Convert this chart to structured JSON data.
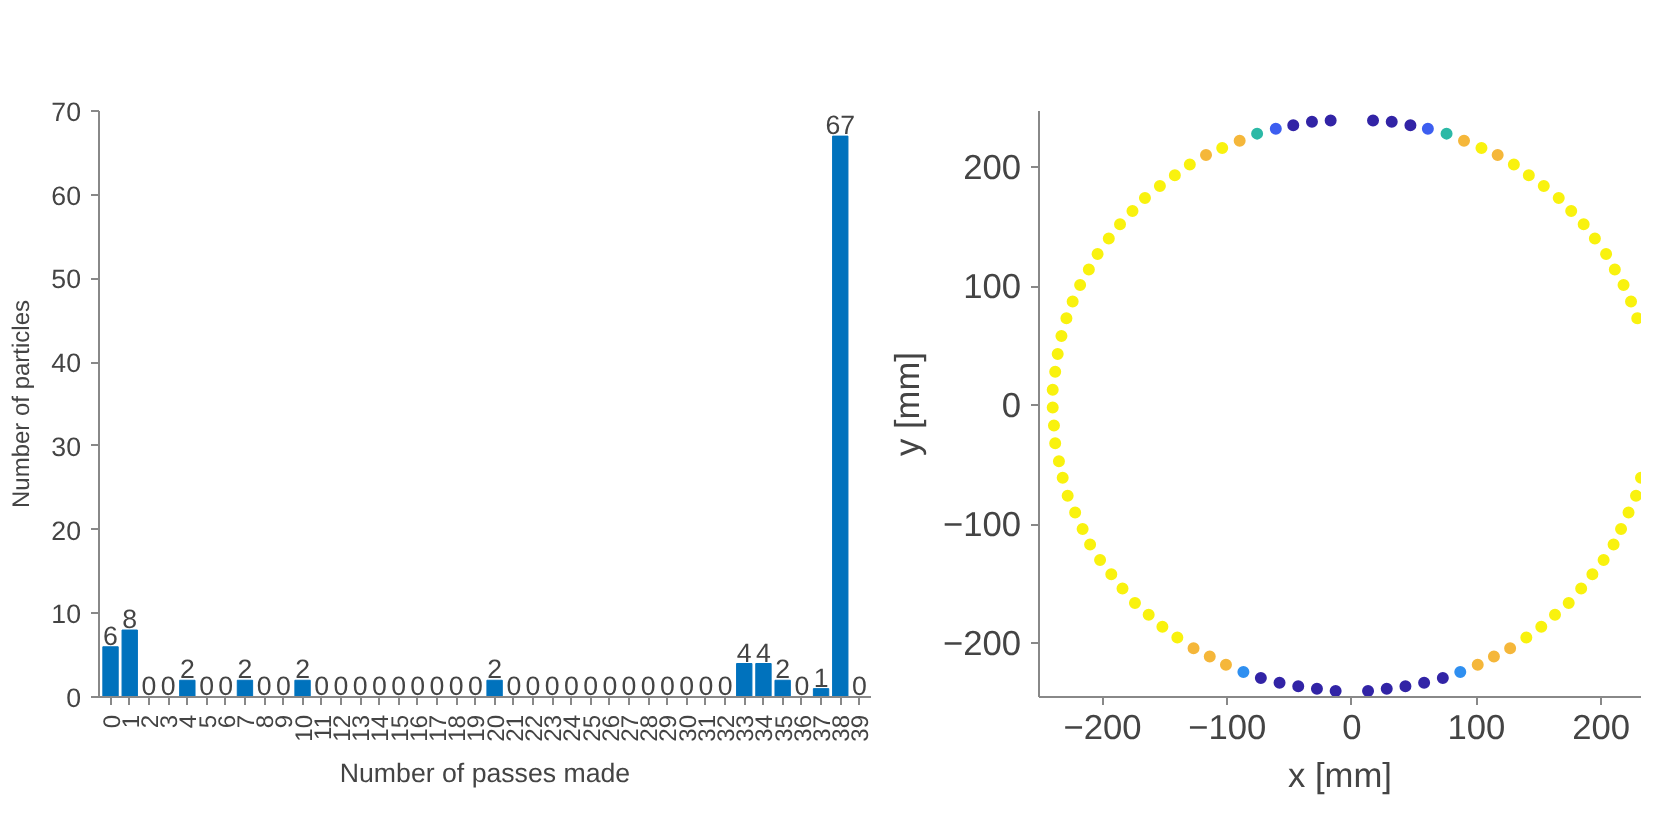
{
  "chart_data": [
    {
      "type": "bar",
      "xlabel": "Number of passes made",
      "ylabel": "Number of particles",
      "categories": [
        "0",
        "1",
        "2",
        "3",
        "4",
        "5",
        "6",
        "7",
        "8",
        "9",
        "10",
        "11",
        "12",
        "13",
        "14",
        "15",
        "16",
        "17",
        "18",
        "19",
        "20",
        "21",
        "22",
        "23",
        "24",
        "25",
        "26",
        "27",
        "28",
        "29",
        "30",
        "31",
        "32",
        "33",
        "34",
        "35",
        "36",
        "37",
        "38",
        "39"
      ],
      "values": [
        6,
        8,
        0,
        0,
        2,
        0,
        0,
        2,
        0,
        0,
        2,
        0,
        0,
        0,
        0,
        0,
        0,
        0,
        0,
        0,
        2,
        0,
        0,
        0,
        0,
        0,
        0,
        0,
        0,
        0,
        0,
        0,
        0,
        4,
        4,
        2,
        0,
        1,
        67,
        0
      ],
      "color": "#0072bd",
      "ylim": [
        0,
        70
      ],
      "yticks": [
        0,
        10,
        20,
        30,
        40,
        50,
        60,
        70
      ],
      "data_labels": true,
      "grid": false
    },
    {
      "type": "scatter",
      "xlabel": "x [mm]",
      "ylabel": "y [mm]",
      "marker": "circle",
      "grid": false,
      "xlim": [
        -251,
        232
      ],
      "ylim": [
        -245,
        247
      ],
      "xticks": [
        -200,
        -100,
        0,
        100,
        200
      ],
      "yticks": [
        -200,
        -100,
        0,
        100,
        200
      ],
      "x": [
        -17,
        -32,
        -47,
        -61,
        -76,
        -90,
        -104,
        -117,
        -130,
        -142,
        -154,
        -166,
        -176,
        -186,
        -195,
        -204,
        -211,
        -218,
        -224,
        -229,
        -233,
        -236,
        -238,
        -240,
        -240,
        -239,
        -238,
        -235,
        -232,
        -228,
        -222,
        -216,
        -210,
        -202,
        -193,
        -184,
        -174,
        -163,
        -152,
        -140,
        -127,
        -114,
        -101,
        -87,
        -73,
        -58,
        -43,
        -28,
        -13,
        17,
        32,
        47,
        61,
        76,
        90,
        104,
        117,
        130,
        142,
        154,
        166,
        176,
        186,
        195,
        204,
        211,
        218,
        224,
        229,
        null,
        null,
        null,
        null,
        null,
        null,
        null,
        null,
        232,
        228,
        222,
        216,
        210,
        202,
        193,
        184,
        174,
        163,
        152,
        140,
        127,
        114,
        101,
        87,
        73,
        58,
        43,
        28,
        13
      ],
      "values": [
        239,
        238,
        235,
        232,
        228,
        222,
        216,
        210,
        202,
        193,
        184,
        174,
        163,
        152,
        140,
        127,
        114,
        101,
        87,
        73,
        58,
        43,
        28,
        13,
        -2,
        -17,
        -32,
        -47,
        -61,
        -76,
        -90,
        -104,
        -117,
        -130,
        -142,
        -154,
        -166,
        -176,
        -186,
        -195,
        -204,
        -211,
        -218,
        -224,
        -229,
        -233,
        -236,
        -238,
        -240,
        239,
        238,
        235,
        232,
        228,
        222,
        216,
        210,
        202,
        193,
        184,
        174,
        163,
        152,
        140,
        127,
        114,
        101,
        87,
        73,
        null,
        null,
        null,
        null,
        null,
        null,
        null,
        null,
        -61,
        -76,
        -90,
        -104,
        -117,
        -130,
        -142,
        -154,
        -166,
        -176,
        -186,
        -195,
        -204,
        -211,
        -218,
        -224,
        -229,
        -233,
        -236,
        -238,
        -240
      ],
      "colors": [
        "#3224a6",
        "#3224a6",
        "#3224a6",
        "#3d5ef0",
        "#2cb9a6",
        "#f5b73a",
        "#f9f20e",
        "#f5b73a",
        "#f9f20e",
        "#f9f20e",
        "#f9f20e",
        "#f9f20e",
        "#f9f20e",
        "#f9f20e",
        "#f9f20e",
        "#f9f20e",
        "#f9f20e",
        "#f9f20e",
        "#f9f20e",
        "#f9f20e",
        "#f9f20e",
        "#f9f20e",
        "#f9f20e",
        "#f9f20e",
        "#f9f20e",
        "#f9f20e",
        "#f9f20e",
        "#f9f20e",
        "#f9f20e",
        "#f9f20e",
        "#f9f20e",
        "#f9f20e",
        "#f9f20e",
        "#f9f20e",
        "#f9f20e",
        "#f9f20e",
        "#f9f20e",
        "#f9f20e",
        "#f9f20e",
        "#f9f20e",
        "#f5b73a",
        "#f5b73a",
        "#f5b73a",
        "#2f8ff0",
        "#3224a6",
        "#3224a6",
        "#3224a6",
        "#3224a6",
        "#3224a6",
        "#3224a6",
        "#3224a6",
        "#3224a6",
        "#3d5ef0",
        "#2cb9a6",
        "#f5b73a",
        "#f9f20e",
        "#f5b73a",
        "#f9f20e",
        "#f9f20e",
        "#f9f20e",
        "#f9f20e",
        "#f9f20e",
        "#f9f20e",
        "#f9f20e",
        "#f9f20e",
        "#f9f20e",
        "#f9f20e",
        "#f9f20e",
        "#f9f20e",
        "#f9f20e",
        "#f9f20e",
        "#f9f20e",
        "#f9f20e",
        "#f9f20e",
        "#f9f20e",
        "#f9f20e",
        "#f9f20e",
        "#f9f20e",
        "#f9f20e",
        "#f9f20e",
        "#f9f20e",
        "#f9f20e",
        "#f9f20e",
        "#f9f20e",
        "#f9f20e",
        "#f9f20e",
        "#f9f20e",
        "#f9f20e",
        "#f9f20e",
        "#f5b73a",
        "#f5b73a",
        "#f5b73a",
        "#2f8ff0",
        "#3224a6",
        "#3224a6",
        "#3224a6",
        "#3224a6",
        "#3224a6"
      ]
    }
  ]
}
